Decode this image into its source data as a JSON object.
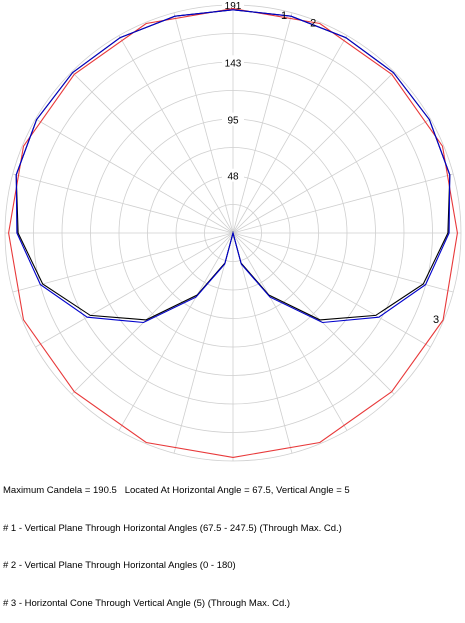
{
  "colors": {
    "grid": "#cfcfcf",
    "series_1": "#000000",
    "series_2": "#0000cc",
    "series_3": "#e8393a",
    "background": "#ffffff"
  },
  "chart_data": {
    "type": "polar",
    "title": "",
    "rlim": [
      0,
      191
    ],
    "r_ticks": [
      48,
      95,
      143,
      191
    ],
    "angle_grid_step_deg": 15,
    "grid": true,
    "series": [
      {
        "name": "1",
        "label_angle_deg": 165,
        "points": [
          [
            0,
            0
          ],
          [
            15,
            26
          ],
          [
            30,
            60
          ],
          [
            45,
            103
          ],
          [
            60,
            138
          ],
          [
            75,
            165
          ],
          [
            90,
            180
          ],
          [
            105,
            188
          ],
          [
            120,
            190
          ],
          [
            135,
            190
          ],
          [
            150,
            189
          ],
          [
            165,
            188
          ],
          [
            180,
            187
          ],
          [
            195,
            188
          ],
          [
            210,
            189
          ],
          [
            225,
            190
          ],
          [
            240,
            190
          ],
          [
            255,
            188
          ],
          [
            270,
            180
          ],
          [
            285,
            165
          ],
          [
            300,
            138
          ],
          [
            315,
            103
          ],
          [
            330,
            60
          ],
          [
            345,
            26
          ],
          [
            360,
            0
          ]
        ]
      },
      {
        "name": "2",
        "label_angle_deg": 157,
        "points": [
          [
            0,
            0
          ],
          [
            15,
            27
          ],
          [
            30,
            62
          ],
          [
            45,
            106
          ],
          [
            60,
            141
          ],
          [
            75,
            167
          ],
          [
            90,
            181
          ],
          [
            105,
            188
          ],
          [
            120,
            190
          ],
          [
            135,
            190
          ],
          [
            150,
            189
          ],
          [
            165,
            188
          ],
          [
            180,
            187
          ],
          [
            195,
            188
          ],
          [
            210,
            189
          ],
          [
            225,
            190
          ],
          [
            240,
            190
          ],
          [
            255,
            188
          ],
          [
            270,
            181
          ],
          [
            285,
            167
          ],
          [
            300,
            141
          ],
          [
            315,
            106
          ],
          [
            330,
            62
          ],
          [
            345,
            27
          ],
          [
            360,
            0
          ]
        ]
      },
      {
        "name": "3",
        "label_angle_deg": 67.5,
        "points": [
          [
            0,
            188
          ],
          [
            22.5,
            190
          ],
          [
            45,
            188
          ],
          [
            67.5,
            190.5
          ],
          [
            90,
            188
          ],
          [
            112.5,
            190
          ],
          [
            135,
            188
          ],
          [
            157.5,
            190
          ],
          [
            180,
            188
          ],
          [
            202.5,
            190
          ],
          [
            225,
            188
          ],
          [
            247.5,
            190
          ],
          [
            270,
            188
          ],
          [
            292.5,
            190
          ],
          [
            315,
            188
          ],
          [
            337.5,
            190
          ],
          [
            360,
            188
          ]
        ]
      }
    ]
  },
  "caption": {
    "line1": "Maximum Candela = 190.5   Located At Horizontal Angle = 67.5, Vertical Angle = 5",
    "line2": "# 1 - Vertical Plane Through Horizontal Angles (67.5 - 247.5) (Through Max. Cd.)",
    "line3": "# 2 - Vertical Plane Through Horizontal Angles (0 - 180)",
    "line4": "# 3 - Horizontal Cone Through Vertical Angle (5) (Through Max. Cd.)"
  }
}
